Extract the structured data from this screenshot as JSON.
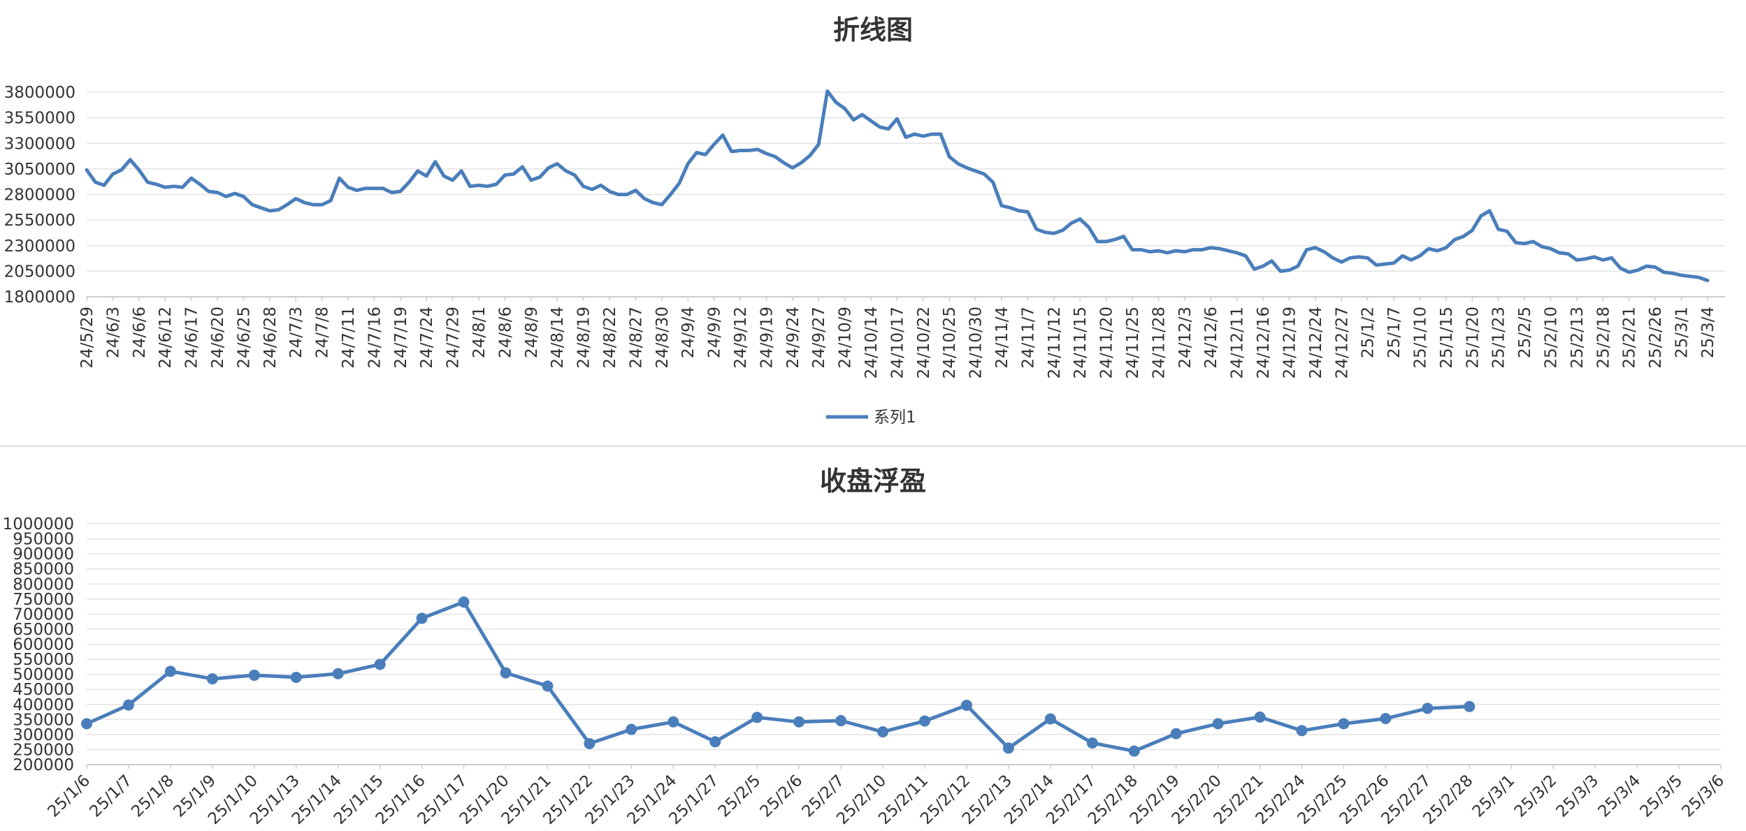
{
  "chart_data": [
    {
      "type": "line",
      "title": "折线图",
      "legend": {
        "entries": [
          "系列1"
        ],
        "position": "bottom-center"
      },
      "grid": true,
      "line_color": "#4a7ebb",
      "ylim": [
        1800000,
        3800000
      ],
      "y_ticks": [
        "1800000",
        "2050000",
        "2300000",
        "2550000",
        "2800000",
        "3050000",
        "3300000",
        "3550000",
        "3800000"
      ],
      "x_tick_labels": [
        "24/5/29",
        "24/6/3",
        "24/6/6",
        "24/6/12",
        "24/6/17",
        "24/6/20",
        "24/6/25",
        "24/6/28",
        "24/7/3",
        "24/7/8",
        "24/7/11",
        "24/7/16",
        "24/7/19",
        "24/7/24",
        "24/7/29",
        "24/8/1",
        "24/8/6",
        "24/8/9",
        "24/8/14",
        "24/8/19",
        "24/8/22",
        "24/8/27",
        "24/8/30",
        "24/9/4",
        "24/9/9",
        "24/9/12",
        "24/9/19",
        "24/9/24",
        "24/9/27",
        "24/10/9",
        "24/10/14",
        "24/10/17",
        "24/10/22",
        "24/10/25",
        "24/10/30",
        "24/11/4",
        "24/11/7",
        "24/11/12",
        "24/11/15",
        "24/11/20",
        "24/11/25",
        "24/11/28",
        "24/12/3",
        "24/12/6",
        "24/12/11",
        "24/12/16",
        "24/12/19",
        "24/12/24",
        "24/12/27",
        "25/1/2",
        "25/1/7",
        "25/1/10",
        "25/1/15",
        "25/1/20",
        "25/1/23",
        "25/2/5",
        "25/2/10",
        "25/2/13",
        "25/2/18",
        "25/2/21",
        "25/2/26",
        "25/3/1",
        "25/3/4"
      ],
      "series": [
        {
          "name": "系列1",
          "values": [
            3040000,
            2920000,
            2890000,
            3000000,
            3040000,
            3140000,
            3040000,
            2920000,
            2900000,
            2870000,
            2880000,
            2870000,
            2960000,
            2900000,
            2830000,
            2820000,
            2780000,
            2810000,
            2780000,
            2700000,
            2670000,
            2640000,
            2650000,
            2700000,
            2760000,
            2720000,
            2700000,
            2700000,
            2740000,
            2960000,
            2870000,
            2840000,
            2860000,
            2860000,
            2860000,
            2820000,
            2830000,
            2920000,
            3030000,
            2980000,
            3120000,
            2980000,
            2940000,
            3030000,
            2880000,
            2890000,
            2880000,
            2900000,
            2990000,
            3000000,
            3070000,
            2940000,
            2970000,
            3060000,
            3100000,
            3030000,
            2990000,
            2880000,
            2850000,
            2890000,
            2830000,
            2800000,
            2800000,
            2840000,
            2760000,
            2720000,
            2700000,
            2800000,
            2910000,
            3100000,
            3210000,
            3190000,
            3290000,
            3380000,
            3220000,
            3230000,
            3230000,
            3240000,
            3200000,
            3170000,
            3110000,
            3060000,
            3110000,
            3180000,
            3290000,
            3810000,
            3700000,
            3640000,
            3530000,
            3580000,
            3520000,
            3460000,
            3440000,
            3540000,
            3360000,
            3390000,
            3370000,
            3390000,
            3390000,
            3170000,
            3100000,
            3060000,
            3030000,
            3000000,
            2920000,
            2690000,
            2670000,
            2640000,
            2630000,
            2460000,
            2430000,
            2420000,
            2450000,
            2520000,
            2560000,
            2480000,
            2340000,
            2340000,
            2360000,
            2390000,
            2260000,
            2260000,
            2240000,
            2250000,
            2230000,
            2250000,
            2240000,
            2260000,
            2260000,
            2280000,
            2270000,
            2250000,
            2230000,
            2200000,
            2070000,
            2100000,
            2150000,
            2050000,
            2060000,
            2100000,
            2260000,
            2280000,
            2240000,
            2180000,
            2140000,
            2180000,
            2190000,
            2180000,
            2110000,
            2120000,
            2130000,
            2200000,
            2160000,
            2200000,
            2270000,
            2250000,
            2280000,
            2360000,
            2390000,
            2450000,
            2590000,
            2640000,
            2460000,
            2440000,
            2330000,
            2320000,
            2340000,
            2290000,
            2270000,
            2230000,
            2220000,
            2160000,
            2170000,
            2190000,
            2160000,
            2180000,
            2080000,
            2040000,
            2060000,
            2100000,
            2090000,
            2040000,
            2030000,
            2010000,
            2000000,
            1990000,
            1960000
          ],
          "last_tick_index": 182
        }
      ]
    },
    {
      "type": "line",
      "title": "收盘浮盈",
      "grid": true,
      "line_color": "#4a7ebb",
      "markers": true,
      "ylim": [
        200000,
        1000000
      ],
      "y_ticks": [
        "200000",
        "250000",
        "300000",
        "350000",
        "400000",
        "450000",
        "500000",
        "550000",
        "600000",
        "650000",
        "700000",
        "750000",
        "800000",
        "850000",
        "900000",
        "950000",
        "1000000"
      ],
      "categories": [
        "25/1/6",
        "25/1/7",
        "25/1/8",
        "25/1/9",
        "25/1/10",
        "25/1/13",
        "25/1/14",
        "25/1/15",
        "25/1/16",
        "25/1/17",
        "25/1/20",
        "25/1/21",
        "25/1/22",
        "25/1/23",
        "25/1/24",
        "25/1/27",
        "25/2/5",
        "25/2/6",
        "25/2/7",
        "25/2/10",
        "25/2/11",
        "25/2/12",
        "25/2/13",
        "25/2/14",
        "25/2/17",
        "25/2/18",
        "25/2/19",
        "25/2/20",
        "25/2/21",
        "25/2/24",
        "25/2/25",
        "25/2/26",
        "25/2/27",
        "25/2/28",
        "25/3/1",
        "25/3/2",
        "25/3/3",
        "25/3/4",
        "25/3/5",
        "25/3/6"
      ],
      "series": [
        {
          "values": [
            336000,
            398000,
            510000,
            485000,
            497000,
            490000,
            502000,
            533000,
            686000,
            740000,
            505000,
            461000,
            270000,
            317000,
            342000,
            276000,
            357000,
            342000,
            346000,
            309000,
            345000,
            397000,
            255000,
            352000,
            272000,
            245000,
            303000,
            336000,
            358000,
            313000,
            336000,
            353000,
            387000,
            393000,
            null,
            null,
            null,
            null,
            null,
            null
          ]
        }
      ]
    }
  ]
}
